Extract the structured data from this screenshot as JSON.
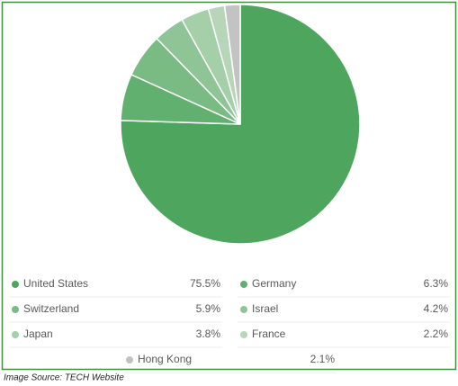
{
  "chart_data": {
    "type": "pie",
    "categories": [
      "United States",
      "Germany",
      "Switzerland",
      "Israel",
      "Japan",
      "France",
      "Hong Kong"
    ],
    "values": [
      75.5,
      6.3,
      5.9,
      4.2,
      3.8,
      2.2,
      2.1
    ],
    "value_labels": [
      "75.5%",
      "6.3%",
      "5.9%",
      "4.2%",
      "3.8%",
      "2.2%",
      "2.1%"
    ],
    "colors": [
      "#4ea65e",
      "#62b06f",
      "#79bb83",
      "#8fc596",
      "#a4cfa8",
      "#b7d6b9",
      "#c3c3c3"
    ]
  },
  "source": "Image Source: TECH Website"
}
